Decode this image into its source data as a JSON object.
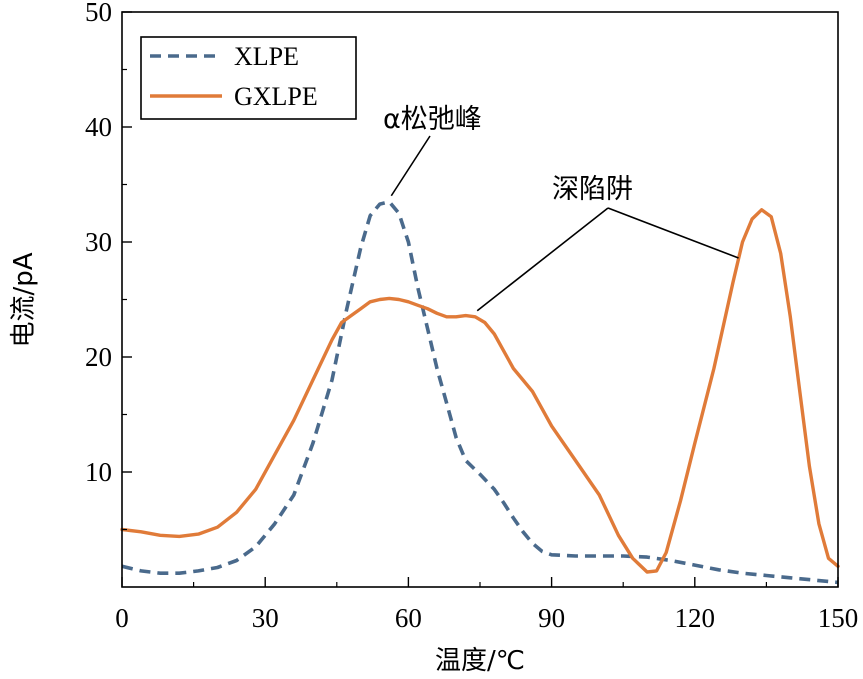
{
  "chart_data": {
    "type": "line",
    "title": "",
    "xlabel": "温度/℃",
    "ylabel": "电流/pA",
    "xlim": [
      0,
      150
    ],
    "ylim": [
      0,
      50
    ],
    "xticks": [
      0,
      30,
      60,
      90,
      120,
      150
    ],
    "yticks": [
      10,
      20,
      30,
      40,
      50
    ],
    "xtick_labels": [
      "0",
      "30",
      "60",
      "90",
      "120",
      "150"
    ],
    "ytick_labels": [
      "10",
      "20",
      "30",
      "40",
      "50"
    ],
    "grid": false,
    "legend_position": "top-left",
    "series": [
      {
        "name": "XLPE",
        "style": "dashed",
        "color": "#4a6a8c",
        "x": [
          0,
          4,
          8,
          12,
          16,
          20,
          24,
          28,
          32,
          36,
          40,
          44,
          47,
          50,
          52,
          54,
          56,
          58,
          60,
          62,
          64,
          66,
          68,
          70,
          72,
          75,
          78,
          80,
          82,
          84,
          86,
          88,
          90,
          95,
          100,
          105,
          110,
          115,
          120,
          125,
          130,
          135,
          140,
          145,
          150
        ],
        "values": [
          1.8,
          1.4,
          1.2,
          1.2,
          1.4,
          1.7,
          2.3,
          3.5,
          5.5,
          8.0,
          12.5,
          18.0,
          24.0,
          29.5,
          32.3,
          33.3,
          33.5,
          32.5,
          30.0,
          26.0,
          22.5,
          19.0,
          16.0,
          13.0,
          11.0,
          9.8,
          8.5,
          7.3,
          6.0,
          4.8,
          3.8,
          3.1,
          2.8,
          2.7,
          2.7,
          2.7,
          2.6,
          2.3,
          1.9,
          1.5,
          1.2,
          1.0,
          0.8,
          0.6,
          0.4
        ]
      },
      {
        "name": "GXLPE",
        "style": "solid",
        "color": "#e07b39",
        "x": [
          0,
          4,
          8,
          12,
          16,
          20,
          24,
          28,
          32,
          36,
          40,
          44,
          46,
          48,
          50,
          52,
          54,
          56,
          58,
          60,
          62,
          64,
          66,
          68,
          70,
          72,
          74,
          76,
          78,
          80,
          82,
          84,
          86,
          88,
          90,
          95,
          100,
          104,
          107,
          110,
          112,
          114,
          117,
          120,
          124,
          128,
          130,
          132,
          134,
          136,
          138,
          140,
          142,
          144,
          146,
          148,
          150
        ],
        "values": [
          5.0,
          4.8,
          4.5,
          4.4,
          4.6,
          5.2,
          6.5,
          8.5,
          11.5,
          14.5,
          18.0,
          21.5,
          23.0,
          23.6,
          24.2,
          24.8,
          25.0,
          25.1,
          25.0,
          24.8,
          24.5,
          24.2,
          23.8,
          23.5,
          23.5,
          23.6,
          23.5,
          23.0,
          22.0,
          20.5,
          19.0,
          18.0,
          17.0,
          15.5,
          14.0,
          11.0,
          8.0,
          4.5,
          2.5,
          1.3,
          1.4,
          3.0,
          7.5,
          12.5,
          19.0,
          26.5,
          30.0,
          32.0,
          32.8,
          32.2,
          29.0,
          23.5,
          17.0,
          10.5,
          5.5,
          2.5,
          1.8
        ]
      }
    ],
    "annotations": [
      {
        "text": "α松弛峰"
      },
      {
        "text": "深陷阱"
      }
    ]
  }
}
